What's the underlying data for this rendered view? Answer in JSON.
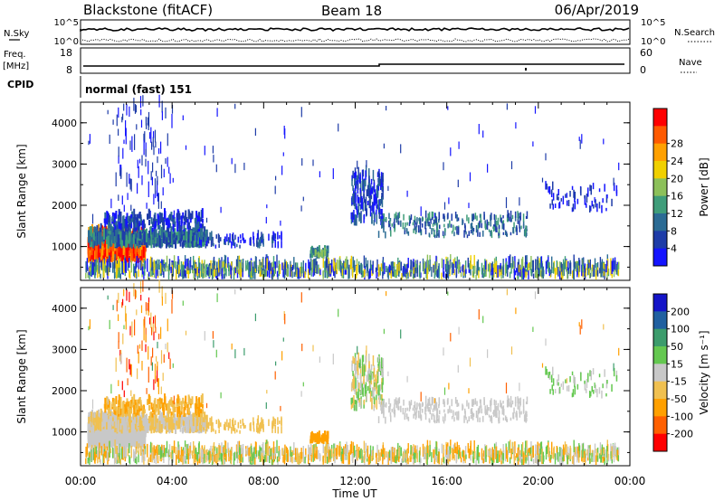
{
  "header": {
    "station": "Blackstone (fitACF)",
    "beam": "Beam 18",
    "date": "06/Apr/2019"
  },
  "strip": {
    "nsky_label": "N.Sky",
    "nsearch_label": "N.Search",
    "nsky_ticks": [
      "10^5",
      "10^0"
    ],
    "nsearch_ticks": [
      "10^5",
      "10^0"
    ],
    "freq_label": "Freq.",
    "freq_unit": "[MHz]",
    "freq_ticks": [
      "18",
      "8"
    ],
    "nave_label": "Nave",
    "nave_ticks": [
      "60",
      "0"
    ],
    "cpid_label": "CPID",
    "cpid_value": "normal (fast) 151"
  },
  "chart_data": [
    {
      "type": "heatmap",
      "name": "power",
      "ylabel": "Slant Range [km]",
      "yticks": [
        "1000",
        "2000",
        "3000",
        "4000"
      ],
      "ylim": [
        180,
        4500
      ],
      "xlim": [
        0,
        24
      ],
      "colorbar": {
        "label": "Power [dB]",
        "ticks": [
          "4",
          "8",
          "12",
          "16",
          "20",
          "24",
          "28"
        ],
        "colors": [
          "#1414ff",
          "#1e3ca8",
          "#2b6b94",
          "#3f9d7a",
          "#8cc05a",
          "#f0d000",
          "#ffa000",
          "#ff5a00",
          "#ff0000"
        ]
      }
    },
    {
      "type": "heatmap",
      "name": "velocity",
      "ylabel": "Slant Range [km]",
      "yticks": [
        "1000",
        "2000",
        "3000",
        "4000"
      ],
      "ylim": [
        180,
        4500
      ],
      "xlim": [
        0,
        24
      ],
      "colorbar": {
        "label": "Velocity [m s⁻¹]",
        "ticks": [
          "200",
          "100",
          "50",
          "15",
          "-15",
          "-50",
          "-100",
          "-200"
        ],
        "colors": [
          "#1414c8",
          "#2060a0",
          "#3c9c6c",
          "#64c850",
          "#c8c8c8",
          "#f0c050",
          "#ffa000",
          "#ff6000",
          "#ff0000"
        ]
      }
    }
  ],
  "xaxis": {
    "label": "Time UT",
    "ticks": [
      "00:00",
      "04:00",
      "08:00",
      "12:00",
      "16:00",
      "20:00",
      "00:00"
    ]
  }
}
